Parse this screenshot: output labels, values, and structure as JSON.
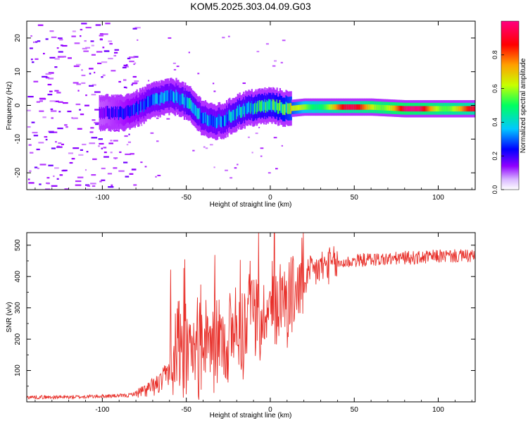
{
  "title": "KOM5.2025.303.04.09.G03",
  "chart_data": [
    {
      "type": "heatmap",
      "xlabel": "Height of straight line (km)",
      "ylabel": "Frequency (Hz)",
      "xlim": [
        -145,
        122
      ],
      "ylim": [
        -25,
        25
      ],
      "xticks": [
        -100,
        -50,
        0,
        50,
        100
      ],
      "yticks": [
        -20,
        -10,
        0,
        10,
        20
      ],
      "colorbar": {
        "label": "Normalized spectral amplitude",
        "range": [
          0.0,
          1.0
        ],
        "ticks": [
          0.0,
          0.2,
          0.4,
          0.6,
          0.8
        ],
        "colormap": [
          "#ffffff",
          "#a000ff",
          "#0000ff",
          "#00c8ff",
          "#00ff60",
          "#c8ff00",
          "#ffa000",
          "#ff0000",
          "#ff0080"
        ]
      },
      "ridge": {
        "description_points_height_km": [
          -100,
          -90,
          -80,
          -70,
          -62,
          -55,
          -48,
          -42,
          -35,
          -28,
          -20,
          -14,
          -8,
          0,
          10,
          20,
          40,
          60,
          80,
          100,
          122
        ],
        "description_points_freq_hz": [
          -2,
          -2.5,
          -1,
          1.5,
          2.5,
          2.5,
          0,
          -3,
          -5,
          -4.5,
          -2,
          -1,
          -0.5,
          0,
          -1,
          -0.5,
          -0.5,
          -0.5,
          -1,
          -1,
          -1
        ],
        "amplitude": [
          0.15,
          0.2,
          0.25,
          0.3,
          0.3,
          0.3,
          0.35,
          0.3,
          0.3,
          0.3,
          0.35,
          0.35,
          0.4,
          0.4,
          0.5,
          0.7,
          0.8,
          0.85,
          0.9,
          0.85,
          0.8
        ]
      }
    },
    {
      "type": "line",
      "xlabel": "Height of straight line (km)",
      "ylabel": "SNR (v/v)",
      "xlim": [
        -145,
        122
      ],
      "ylim": [
        0,
        540
      ],
      "xticks": [
        -100,
        -50,
        0,
        50,
        100
      ],
      "yticks": [
        100,
        200,
        300,
        400,
        500
      ],
      "series": [
        {
          "name": "SNR",
          "color": "#e8302a",
          "x": [
            -145,
            -120,
            -100,
            -85,
            -75,
            -65,
            -58,
            -52,
            -45,
            -38,
            -30,
            -22,
            -15,
            -8,
            0,
            5,
            10,
            15,
            20,
            30,
            40,
            50,
            60,
            70,
            80,
            90,
            100,
            110,
            122
          ],
          "y": [
            15,
            15,
            18,
            20,
            35,
            60,
            120,
            160,
            170,
            180,
            190,
            210,
            230,
            260,
            300,
            320,
            330,
            350,
            390,
            430,
            440,
            450,
            455,
            455,
            460,
            460,
            465,
            465,
            465
          ]
        }
      ]
    }
  ]
}
